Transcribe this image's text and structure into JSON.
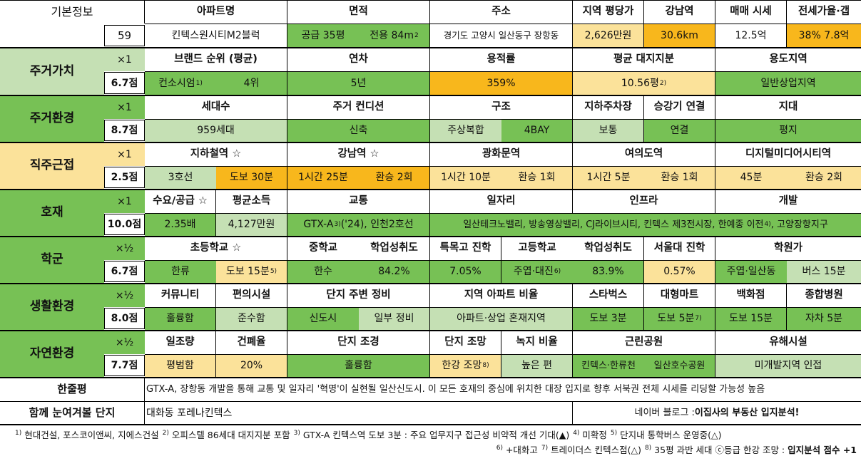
{
  "basic": {
    "label": "기본정보",
    "number": "59",
    "headers": {
      "apartment": "아파트명",
      "area": "면적",
      "address": "주소",
      "price_per_pyeong": "지역 평당가",
      "gangnam": "강남역",
      "sale_price": "매매 시세",
      "jeonse": "전세가율·갭"
    },
    "values": {
      "apartment": "킨텍스원시티M2블럭",
      "area_supply": "공급 35평",
      "area_exclusive": "전용 84m",
      "area_exclusive_sup": "2",
      "address": "경기도 고양시 일산동구 장항동",
      "price_per_pyeong": "2,626만원",
      "gangnam": "30.6km",
      "sale_price": "12.5억",
      "jeonse": "38%  7.8억"
    }
  },
  "residential_value": {
    "label": "주거가치",
    "multiplier": "×1",
    "score": "6.7점",
    "headers": {
      "brand": "브랜드 순위 (평균)",
      "age": "연차",
      "far": "용적률",
      "land": "평균 대지지분",
      "zoning": "용도지역"
    },
    "values": {
      "brand_builder": "컨소시엄",
      "brand_builder_sup": "1)",
      "brand_rank": "4위",
      "age": "5년",
      "far": "359%",
      "land": "10.56평",
      "land_sup": "2)",
      "zoning": "일반상업지역"
    }
  },
  "residential_env": {
    "label": "주거환경",
    "multiplier": "×1",
    "score": "8.7점",
    "headers": {
      "households": "세대수",
      "condition": "주거 컨디션",
      "structure": "구조",
      "parking": "지하주차장",
      "elevator": "승강기 연결",
      "terrain": "지대"
    },
    "values": {
      "households": "959세대",
      "condition": "신축",
      "structure_type": "주상복합",
      "structure_bay": "4BAY",
      "parking": "보통",
      "elevator": "연결",
      "terrain": "평지"
    }
  },
  "commute": {
    "label": "직주근접",
    "multiplier": "×1",
    "score": "2.5점",
    "headers": {
      "subway": "지하철역 ☆",
      "gangnam": "강남역 ☆",
      "gwanghwamun": "광화문역",
      "yeouido": "여의도역",
      "dmc": "디지털미디어시티역"
    },
    "values": {
      "subway_line": "3호선",
      "subway_walk": "도보 30분",
      "gangnam_time": "1시간 25분",
      "gangnam_transfer": "환승 2회",
      "gwanghwamun_time": "1시간 10분",
      "gwanghwamun_transfer": "환승 1회",
      "yeouido_time": "1시간 5분",
      "yeouido_transfer": "환승 1회",
      "dmc_time": "45분",
      "dmc_transfer": "환승 2회"
    }
  },
  "development": {
    "label": "호재",
    "multiplier": "×1",
    "score": "10.0점",
    "headers": {
      "supply": "수요/공급 ☆",
      "income": "평균소득",
      "transport": "교통",
      "jobs": "일자리",
      "infra": "인프라",
      "dev": "개발"
    },
    "values": {
      "supply": "2.35배",
      "income": "4,127만원",
      "transport_a": "GTX-A",
      "transport_sup": "3)",
      "transport_b": " ('24), 인천2호선",
      "jobs_infra_a": "일산테크노밸리, 방송영상밸리, CJ라이브시티, 킨텍스 제3전시장, 한예종 이전",
      "jobs_infra_sup": "4)",
      "jobs_infra_b": ", 고양장항지구"
    }
  },
  "school": {
    "label": "학군",
    "multiplier": "×½",
    "score": "6.7점",
    "headers": {
      "elementary": "초등학교 ☆",
      "middle": "중학교",
      "middle_achieve": "학업성취도",
      "special": "특목고 진학",
      "high": "고등학교",
      "high_achieve": "학업성취도",
      "snu": "서울대 진학",
      "academy": "학원가"
    },
    "values": {
      "elementary_name": "한류",
      "elementary_walk": "도보 15분",
      "elementary_sup": "5)",
      "middle_name": "한수",
      "middle_achieve": "84.2%",
      "special": "7.05%",
      "high_name": "주엽·대진",
      "high_sup": "6)",
      "high_achieve": "83.9%",
      "snu": "0.57%",
      "academy_area": "주엽·일산동",
      "academy_bus": "버스 15분"
    }
  },
  "living_env": {
    "label": "생활환경",
    "multiplier": "×½",
    "score": "8.0점",
    "headers": {
      "community": "커뮤니티",
      "convenience": "편의시설",
      "maintenance": "단지 주변 정비",
      "ratio": "지역 아파트 비율",
      "starbucks": "스타벅스",
      "mart": "대형마트",
      "department": "백화점",
      "hospital": "종합병원"
    },
    "values": {
      "community": "훌륭함",
      "convenience": "준수함",
      "maintenance_a": "신도시",
      "maintenance_b": "일부 정비",
      "ratio": "아파트·상업 혼재지역",
      "starbucks": "도보 3분",
      "mart": "도보 5분",
      "mart_sup": "7)",
      "department": "도보 15분",
      "hospital": "자차 5분"
    }
  },
  "nature_env": {
    "label": "자연환경",
    "multiplier": "×½",
    "score": "7.7점",
    "headers": {
      "sunlight": "일조량",
      "coverage": "건폐율",
      "landscape": "단지 조경",
      "view": "단지 조망",
      "green": "녹지 비율",
      "park": "근린공원",
      "hazard": "유해시설"
    },
    "values": {
      "sunlight": "평범함",
      "coverage": "20%",
      "landscape": "훌륭함",
      "view": "한강 조망",
      "view_sup": "8)",
      "green": "높은 편",
      "park_a": "킨텍스·한류천",
      "park_b": "일산호수공원",
      "hazard": "미개발지역 인접"
    }
  },
  "summary": {
    "label": "한줄평",
    "text": "GTX-A, 장항동 개발을 통해 교통 및 일자리 '혁명'이 실현될 일산신도시. 이 모든 호재의 중심에 위치한 대장 입지로 향후 서북권 전체 시세를 리딩할 가능성 높음"
  },
  "compare": {
    "label": "함께 눈여겨볼 단지",
    "value": "대화동 포레나킨텍스",
    "blog_prefix": "네이버 블로그 : ",
    "blog_name": "이집사의 부동산 입지분석!"
  },
  "footnotes": {
    "line1": [
      {
        "sup": "1)",
        "text": " 현대건설, 포스코이앤씨, 지에스건설 "
      },
      {
        "sup": "2)",
        "text": " 오피스텔 86세대 대지지분 포함 "
      },
      {
        "sup": "3)",
        "text": " GTX-A 킨텍스역 도보 3분 : 주요 업무지구 접근성 비약적 개선 기대(▲) "
      },
      {
        "sup": "4)",
        "text": " 미확정 "
      },
      {
        "sup": "5)",
        "text": " 단지내 통학버스 운영중(△)"
      }
    ],
    "line2_parts": [
      {
        "sup": "6)",
        "text": " +대화고 "
      },
      {
        "sup": "7)",
        "text": " 트레이더스 킨텍스점(△) "
      },
      {
        "sup": "8)",
        "text": " 35평 과반 세대 ⓒ등급 한강 조망 : "
      }
    ],
    "line2_bold": "입지분석 점수 +1"
  }
}
